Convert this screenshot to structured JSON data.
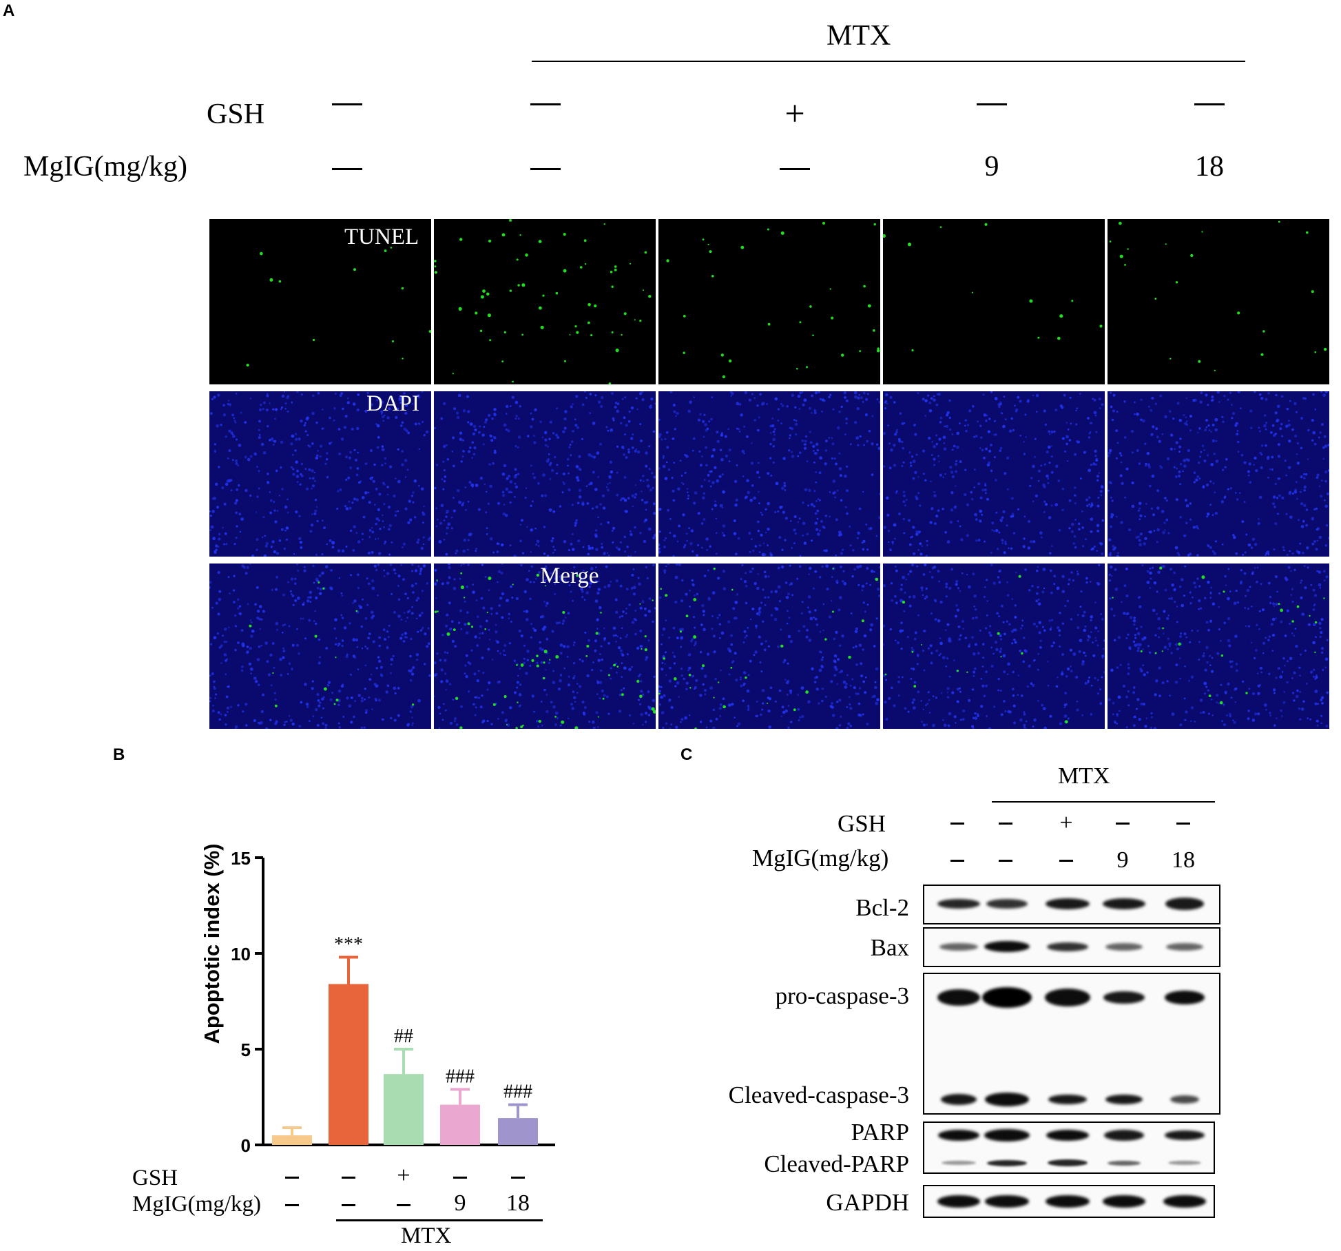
{
  "panels": {
    "A": "A",
    "B": "B",
    "C": "C"
  },
  "panel_a": {
    "mtx_label": "MTX",
    "gsh_label": "GSH",
    "mgig_label": "MgIG(mg/kg)",
    "gsh_values": [
      "—",
      "—",
      "+",
      "—",
      "—"
    ],
    "mgig_values": [
      "—",
      "—",
      "—",
      "9",
      "18"
    ],
    "row_labels": {
      "tunel": "TUNEL",
      "dapi": "DAPI",
      "merge": "Merge"
    },
    "colors": {
      "tunel_bg": "#000000",
      "tunel_dot": "#22dd22",
      "dapi_bg": "#0a0a6e",
      "dapi_dot": "#2233ee"
    },
    "tunel_density": [
      0.2,
      1.0,
      0.5,
      0.2,
      0.35
    ]
  },
  "panel_b": {
    "gsh_label": "GSH",
    "mgig_label": "MgIG(mg/kg)",
    "mtx_label": "MTX",
    "gsh_values": [
      "—",
      "—",
      "+",
      "—",
      "—"
    ],
    "mgig_values": [
      "—",
      "—",
      "—",
      "9",
      "18"
    ]
  },
  "chart_data": {
    "type": "bar",
    "ylabel": "Apoptotic index (%)",
    "ylim": [
      0,
      15
    ],
    "yticks": [
      "0",
      "5",
      "10",
      "15"
    ],
    "values": [
      0.5,
      8.4,
      3.7,
      2.1,
      1.4
    ],
    "errors": [
      0.4,
      1.4,
      1.3,
      0.8,
      0.7
    ],
    "colors": [
      "#f7c98b",
      "#e8643a",
      "#a8dcb1",
      "#eaa7cf",
      "#9f95cc"
    ],
    "annotations": [
      "",
      "***",
      "##",
      "###",
      "###"
    ]
  },
  "panel_c": {
    "mtx_label": "MTX",
    "gsh_label": "GSH",
    "mgig_label": "MgIG(mg/kg)",
    "gsh_values": [
      "—",
      "—",
      "+",
      "—",
      "—"
    ],
    "mgig_values": [
      "—",
      "—",
      "—",
      "9",
      "18"
    ],
    "blot_labels": {
      "bcl2": "Bcl-2",
      "bax": "Bax",
      "procasp": "pro-caspase-3",
      "cleavedcasp": "Cleaved-caspase-3",
      "parp": "PARP",
      "cleavedparp": "Cleaved-PARP",
      "gapdh": "GAPDH"
    }
  }
}
